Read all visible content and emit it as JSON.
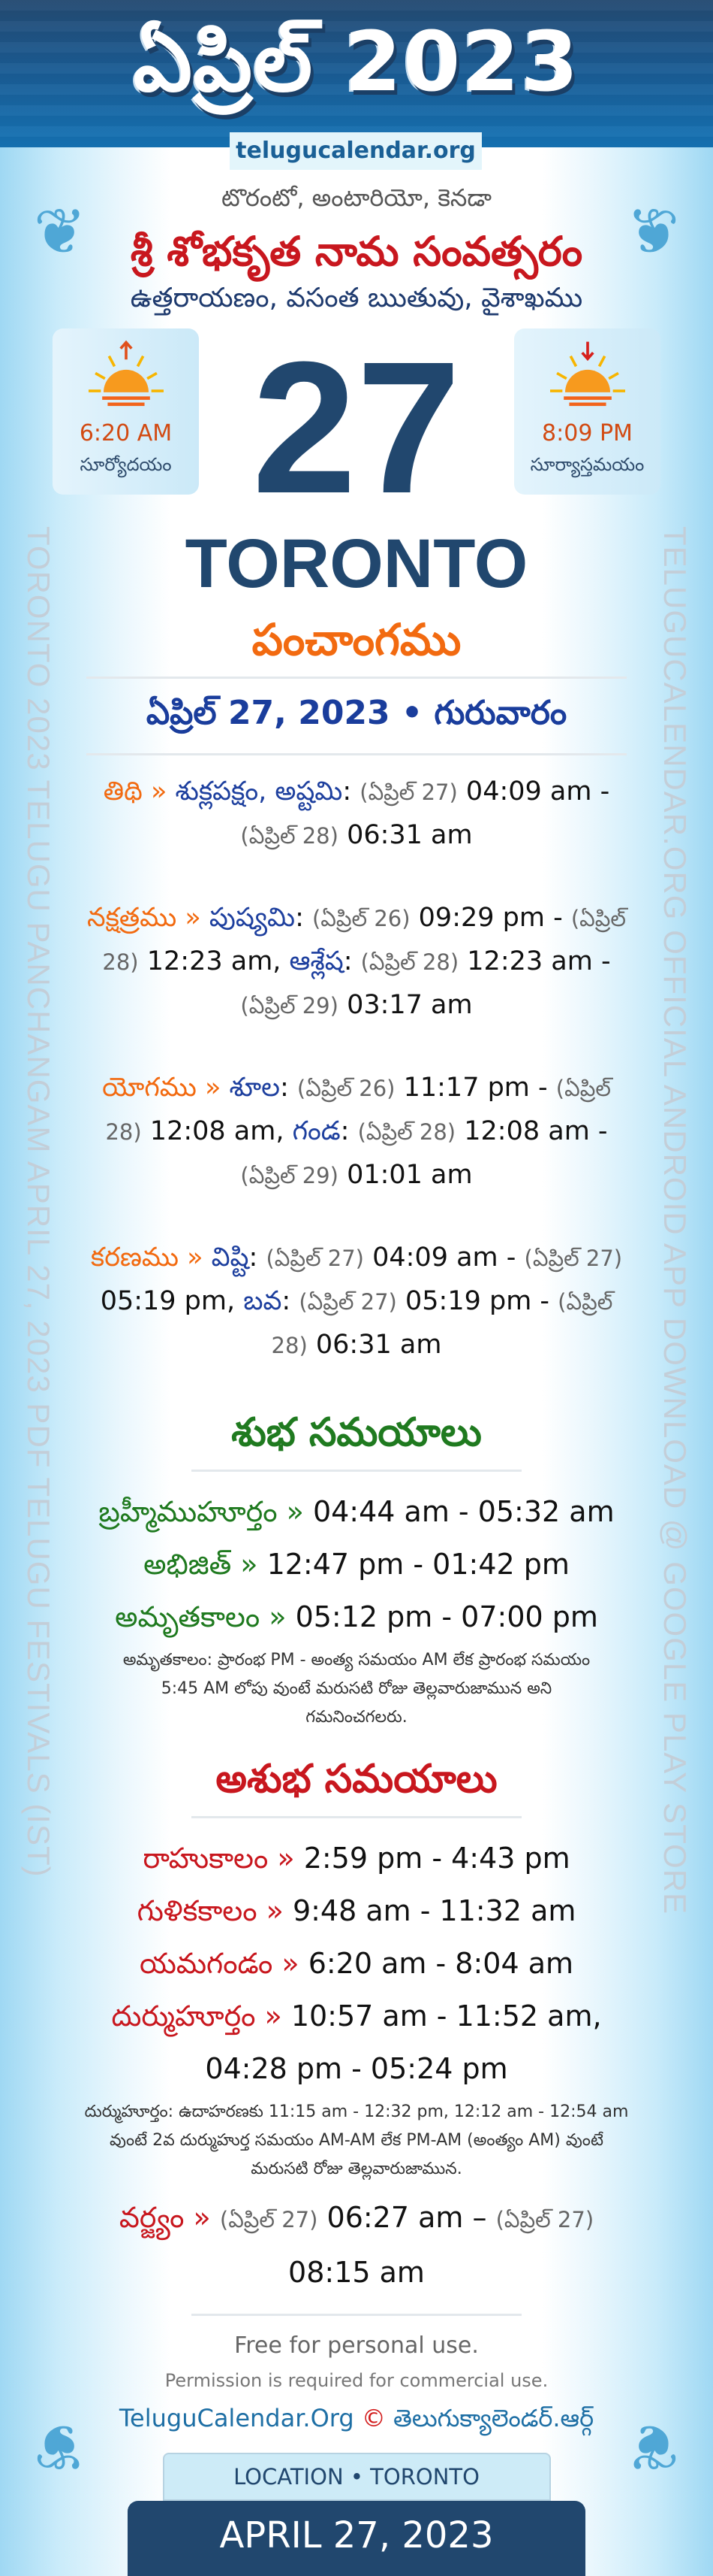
{
  "header": {
    "title": "ఏప్రిల్ 2023",
    "site": "telugucalendar.org"
  },
  "location_line": "టొరంటో, అంటారియో, కెనడా",
  "samvatsaram": "శ్రీ శోభకృత నామ సంవత్సరం",
  "ayanam": "ఉత్తరాయణం, వసంత ఋతువు, వైశాఖము",
  "sunrise": {
    "time": "6:20 AM",
    "label": "సూర్యోదయం",
    "icon": "sunrise-icon"
  },
  "sunset": {
    "time": "8:09 PM",
    "label": "సూర్యాస్తమయం",
    "icon": "sunset-icon"
  },
  "day": "27",
  "city": "TORONTO",
  "panchangam_title": "పంచాంగము",
  "date_line": "ఏప్రిల్ 27, 2023 • గురువారం",
  "side_left": "TORONTO 2023 TELUGU PANCHANGAM APRIL 27, 2023 PDF TELUGU FESTIVALS (IST)",
  "side_right": "TELUGUCALENDAR.ORG OFFICIAL ANDROID APP DOWNLOAD @ GOOGLE PLAY STORE",
  "watermark": "telugucalendar.org",
  "panchang": [
    {
      "segments": [
        [
          "lab",
          "తిథి"
        ],
        [
          "lab",
          " » "
        ],
        [
          "nm",
          "శుక్లపక్షం, అష్టమి"
        ],
        [
          "tm",
          ": "
        ],
        [
          "dt",
          "(ఏప్రిల్ 27)"
        ],
        [
          "tm",
          " 04:09 am - "
        ],
        [
          "dt",
          "(ఏప్రిల్ 28)"
        ],
        [
          "tm",
          " 06:31 am"
        ]
      ]
    },
    {
      "segments": [
        [
          "lab",
          "నక్షత్రము"
        ],
        [
          "lab",
          " » "
        ],
        [
          "nm",
          "పుష్యమి"
        ],
        [
          "tm",
          ": "
        ],
        [
          "dt",
          "(ఏప్రిల్ 26)"
        ],
        [
          "tm",
          " 09:29 pm - "
        ],
        [
          "dt",
          "(ఏప్రిల్ 28)"
        ],
        [
          "tm",
          " 12:23 am, "
        ],
        [
          "nm",
          "ఆశ్లేష"
        ],
        [
          "tm",
          ": "
        ],
        [
          "dt",
          "(ఏప్రిల్ 28)"
        ],
        [
          "tm",
          " 12:23 am - "
        ],
        [
          "dt",
          "(ఏప్రిల్ 29)"
        ],
        [
          "tm",
          " 03:17 am"
        ]
      ]
    },
    {
      "segments": [
        [
          "lab",
          "యోగము"
        ],
        [
          "lab",
          " » "
        ],
        [
          "nm",
          "శూల"
        ],
        [
          "tm",
          ": "
        ],
        [
          "dt",
          "(ఏప్రిల్ 26)"
        ],
        [
          "tm",
          " 11:17 pm - "
        ],
        [
          "dt",
          "(ఏప్రిల్ 28)"
        ],
        [
          "tm",
          " 12:08 am, "
        ],
        [
          "nm",
          "గండ"
        ],
        [
          "tm",
          ": "
        ],
        [
          "dt",
          "(ఏప్రిల్ 28)"
        ],
        [
          "tm",
          " 12:08 am - "
        ],
        [
          "dt",
          "(ఏప్రిల్ 29)"
        ],
        [
          "tm",
          " 01:01 am"
        ]
      ]
    },
    {
      "segments": [
        [
          "lab",
          "కరణము"
        ],
        [
          "lab",
          " » "
        ],
        [
          "nm",
          "విష్టి"
        ],
        [
          "tm",
          ": "
        ],
        [
          "dt",
          "(ఏప్రిల్ 27)"
        ],
        [
          "tm",
          " 04:09 am - "
        ],
        [
          "dt",
          "(ఏప్రిల్ 27)"
        ],
        [
          "tm",
          " 05:19 pm, "
        ],
        [
          "nm",
          "బవ"
        ],
        [
          "tm",
          ": "
        ],
        [
          "dt",
          "(ఏప్రిల్ 27)"
        ],
        [
          "tm",
          " 05:19 pm - "
        ],
        [
          "dt",
          "(ఏప్రిల్ 28)"
        ],
        [
          "tm",
          " 06:31 am"
        ]
      ]
    }
  ],
  "shubha": {
    "title": "శుభ సమయాలు",
    "color": "#1f7a1f",
    "items": [
      {
        "label": "బ్రహ్మీముహూర్తం",
        "time": "04:44 am - 05:32 am"
      },
      {
        "label": "అభిజిత్",
        "time": "12:47 pm - 01:42 pm"
      },
      {
        "label": "అమృతకాలం",
        "time": "05:12 pm - 07:00 pm"
      }
    ],
    "note": "అమృతకాలం: ప్రారంభ PM - అంత్య సమయం AM లేక ప్రారంభ సమయం 5:45 AM లోపు వుంటే మరుసటి రోజు తెల్లవారుజామున అని గమనించగలరు."
  },
  "ashubha": {
    "title": "అశుభ సమయాలు",
    "color": "#c8171e",
    "items": [
      {
        "label": "రాహుకాలం",
        "time": "2:59 pm - 4:43 pm"
      },
      {
        "label": "గుళికకాలం",
        "time": "9:48 am - 11:32 am"
      },
      {
        "label": "యమగండం",
        "time": "6:20 am - 8:04 am"
      },
      {
        "label": "దుర్ముహూర్తం",
        "time": "10:57 am - 11:52 am, 04:28 pm - 05:24 pm"
      }
    ],
    "note": "దుర్ముహూర్తం: ఉదాహరణకు 11:15 am - 12:32 pm, 12:12 am - 12:54 am వుంటే 2వ దుర్ముహుర్త సమయం AM-AM లేక PM-AM (అంత్యం AM) వుంటే మరుసటి రోజు తెల్లవారుజామున.",
    "varjyam": {
      "label": "వర్జ్యం",
      "from_date": "(ఏప్రిల్ 27)",
      "from_time": "06:27 am –",
      "to_date": "(ఏప్రిల్ 27)",
      "to_time": "08:15 am"
    }
  },
  "separator": " » ",
  "footer": {
    "free": "Free for personal use.",
    "permission": "Permission is required for commercial use.",
    "site_en": "TeluguCalendar.Org",
    "copyright": "©",
    "site_te": "తెలుగుక్యాలెండర్.ఆర్గ్",
    "location": "LOCATION • TORONTO",
    "date": "APRIL 27, 2023"
  }
}
